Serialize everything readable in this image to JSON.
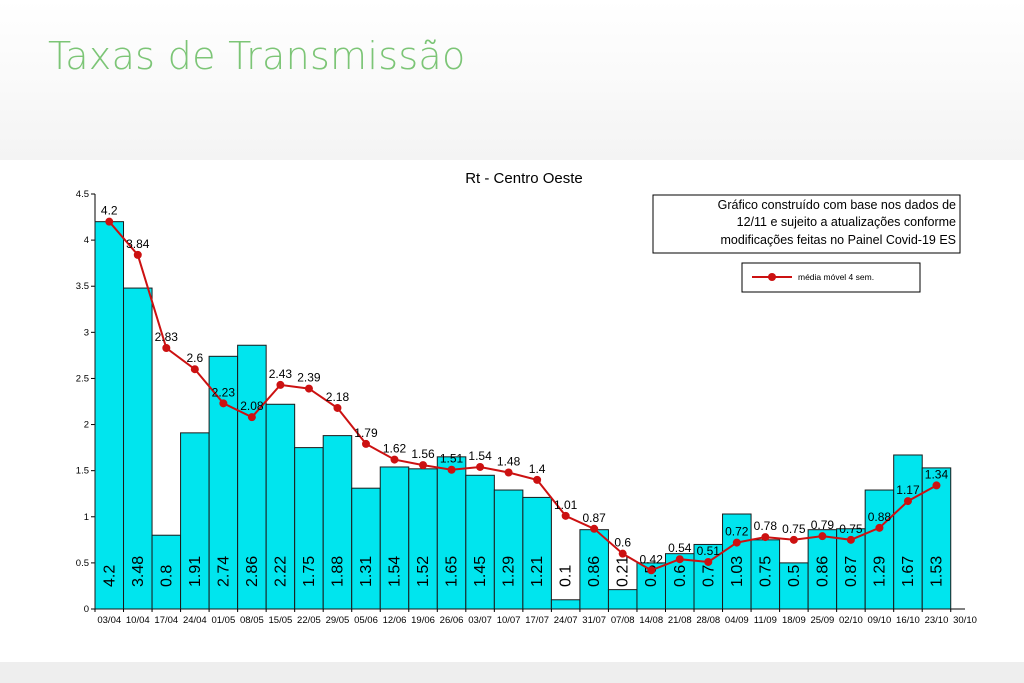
{
  "slide": {
    "title": "Taxas de Transmissão"
  },
  "colors": {
    "title": "#7cc576",
    "bar_fill": "#00e5ee",
    "bar_stroke": "#1a1a1a",
    "line": "#cc1111"
  },
  "chart_data": {
    "type": "bar",
    "title": "Rt - Centro Oeste",
    "xlabel": "",
    "ylabel": "",
    "ylim": [
      0,
      4.5
    ],
    "yticks": [
      0,
      0.5,
      1,
      1.5,
      2,
      2.5,
      3,
      3.5,
      4,
      4.5
    ],
    "yticklabels": [
      "0",
      "0.5",
      "1",
      "1.5",
      "2",
      "2.5",
      "3",
      "3.5",
      "4",
      "4.5"
    ],
    "grid": false,
    "categories": [
      "03/04",
      "10/04",
      "17/04",
      "24/04",
      "01/05",
      "08/05",
      "15/05",
      "22/05",
      "29/05",
      "05/06",
      "12/06",
      "19/06",
      "26/06",
      "03/07",
      "10/07",
      "17/07",
      "24/07",
      "31/07",
      "07/08",
      "14/08",
      "21/08",
      "28/08",
      "04/09",
      "11/09",
      "18/09",
      "25/09",
      "02/10",
      "09/10",
      "16/10",
      "23/10",
      "30/10"
    ],
    "series": [
      {
        "kind": "bar",
        "values": [
          4.2,
          3.48,
          0.8,
          1.91,
          2.74,
          2.86,
          2.22,
          1.75,
          1.88,
          1.31,
          1.54,
          1.52,
          1.65,
          1.45,
          1.29,
          1.21,
          0.1,
          0.86,
          0.21,
          0.5,
          0.6,
          0.7,
          1.03,
          0.75,
          0.5,
          0.86,
          0.87,
          1.29,
          1.67,
          1.53,
          null
        ],
        "labels": [
          "4.2",
          "3.48",
          "0.8",
          "1.91",
          "2.74",
          "2.86",
          "2.22",
          "1.75",
          "1.88",
          "1.31",
          "1.54",
          "1.52",
          "1.65",
          "1.45",
          "1.29",
          "1.21",
          "0.1",
          "0.86",
          "0.21",
          "0.5",
          "0.6",
          "0.7",
          "1.03",
          "0.75",
          "0.5",
          "0.86",
          "0.87",
          "1.29",
          "1.67",
          "1.53",
          ""
        ]
      },
      {
        "kind": "line",
        "name": "média móvel 4 sem.",
        "values": [
          4.2,
          3.84,
          2.83,
          2.6,
          2.23,
          2.08,
          2.43,
          2.39,
          2.18,
          1.79,
          1.62,
          1.56,
          1.51,
          1.54,
          1.48,
          1.4,
          1.01,
          0.87,
          0.6,
          0.42,
          0.54,
          0.51,
          0.72,
          0.78,
          0.75,
          0.79,
          0.75,
          0.88,
          1.17,
          1.34,
          null
        ],
        "labels": [
          "4.2",
          "3.84",
          "2.83",
          "2.6",
          "2.23",
          "2.08",
          "2.43",
          "2.39",
          "2.18",
          "1.79",
          "1.62",
          "1.56",
          "1.51",
          "1.54",
          "1.48",
          "1.4",
          "1.01",
          "0.87",
          "0.6",
          "0.42",
          "0.54",
          "0.51",
          "0.72",
          "0.78",
          "0.75",
          "0.79",
          "0.75",
          "0.88",
          "1.17",
          "1.34",
          ""
        ]
      }
    ],
    "annotation": {
      "lines": [
        "Gráfico construído com base nos dados de",
        "12/11 e sujeito a atualizações conforme",
        "modificações feitas no Painel Covid-19 ES"
      ]
    },
    "legend": {
      "position": "top-right",
      "entries": [
        "média móvel 4 sem."
      ]
    }
  }
}
